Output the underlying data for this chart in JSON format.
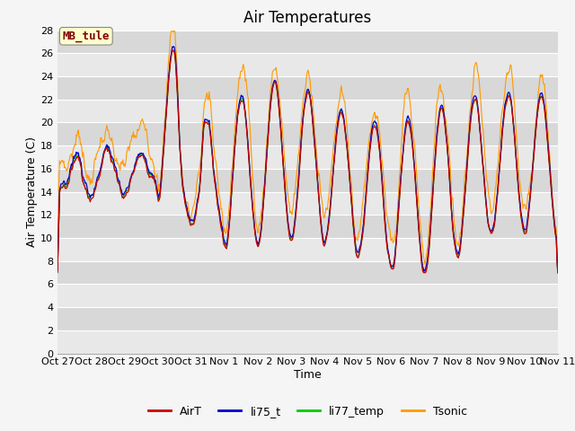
{
  "title": "Air Temperatures",
  "xlabel": "Time",
  "ylabel": "Air Temperature (C)",
  "ylim": [
    0,
    28
  ],
  "yticks": [
    0,
    2,
    4,
    6,
    8,
    10,
    12,
    14,
    16,
    18,
    20,
    22,
    24,
    26,
    28
  ],
  "xtick_labels": [
    "Oct 27",
    "Oct 28",
    "Oct 29",
    "Oct 30",
    "Oct 31",
    "Nov 1",
    "Nov 2",
    "Nov 3",
    "Nov 4",
    "Nov 5",
    "Nov 6",
    "Nov 7",
    "Nov 8",
    "Nov 9",
    "Nov 10",
    "Nov 11"
  ],
  "legend_labels": [
    "AirT",
    "li75_t",
    "li77_temp",
    "Tsonic"
  ],
  "line_colors": [
    "#cc0000",
    "#0000cc",
    "#00cc00",
    "#ff9900"
  ],
  "watermark_text": "MB_tule",
  "watermark_color": "#800000",
  "watermark_bg": "#ffffcc",
  "band_colors": [
    "#e8e8e8",
    "#d8d8d8"
  ],
  "title_fontsize": 12,
  "axis_label_fontsize": 9,
  "tick_fontsize": 8,
  "n_days": 15,
  "n_points": 720
}
